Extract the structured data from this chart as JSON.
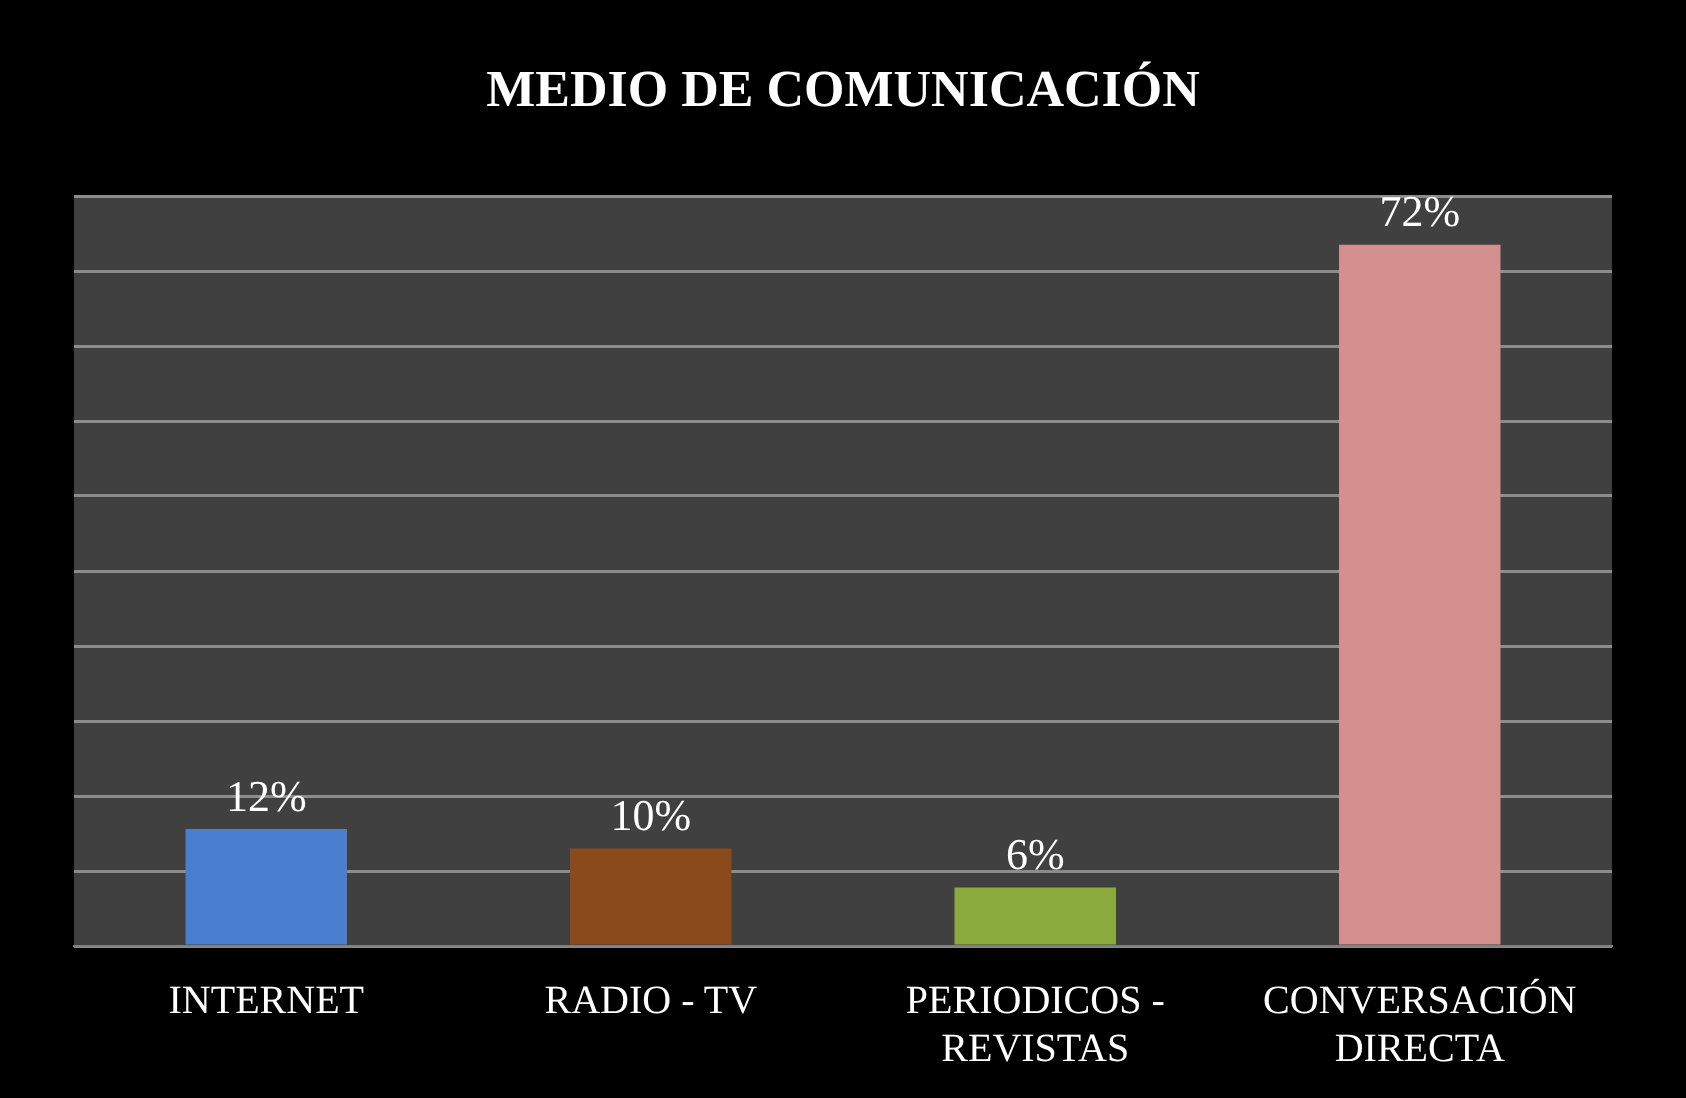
{
  "chart_data": {
    "type": "bar",
    "title": "MEDIO DE COMUNICACIÓN",
    "categories": [
      "INTERNET",
      "RADIO - TV",
      "PERIODICOS - REVISTAS",
      "CONVERSACIÓN DIRECTA"
    ],
    "values": [
      12,
      10,
      6,
      72
    ],
    "colors": [
      "#4a7fd0",
      "#8a4a1c",
      "#8aab3c",
      "#d4908f"
    ],
    "ylim": [
      0,
      77
    ],
    "yticks": [
      {
        "value": 0,
        "label": null
      },
      {
        "value": 7.7,
        "label": null
      },
      {
        "value": 15.4,
        "label": null
      },
      {
        "value": 23.1,
        "label": null
      },
      {
        "value": 30.8,
        "label": null
      },
      {
        "value": 38.5,
        "label": null
      },
      {
        "value": 46.2,
        "label": null
      },
      {
        "value": 53.9,
        "label": null
      },
      {
        "value": 61.6,
        "label": null
      },
      {
        "value": 69.3,
        "label": null
      },
      {
        "value": 77,
        "label": null
      }
    ],
    "value_labels": [
      "12%",
      "10%",
      "6%",
      "72%"
    ],
    "grid": "y",
    "legend": false,
    "tick_labels": "x"
  }
}
